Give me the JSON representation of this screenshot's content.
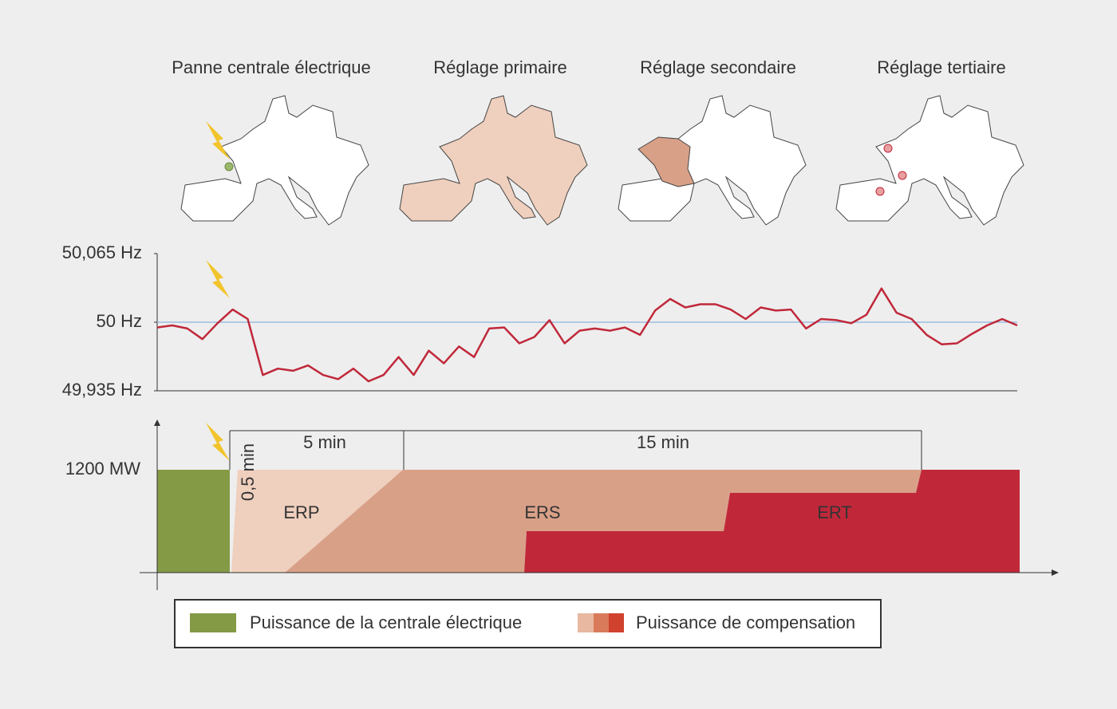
{
  "maps": [
    {
      "title": "Panne centrale électrique"
    },
    {
      "title": "Réglage primaire"
    },
    {
      "title": "Réglage secondaire"
    },
    {
      "title": "Réglage tertiaire"
    }
  ],
  "frequency": {
    "type": "line",
    "color": "#c0283a",
    "ylim": [
      49.935,
      50.065
    ],
    "yticks": [
      {
        "value": 50.065,
        "label": "50,065 Hz"
      },
      {
        "value": 50,
        "label": "50 Hz"
      },
      {
        "value": 49.935,
        "label": "49,935 Hz"
      }
    ],
    "values": [
      49.995,
      49.997,
      49.994,
      49.984,
      49.999,
      50.012,
      50.003,
      49.95,
      49.956,
      49.954,
      49.959,
      49.95,
      49.946,
      49.956,
      49.944,
      49.95,
      49.967,
      49.95,
      49.973,
      49.961,
      49.977,
      49.967,
      49.994,
      49.995,
      49.98,
      49.986,
      50.002,
      49.98,
      49.992,
      49.994,
      49.992,
      49.995,
      49.988,
      50.011,
      50.022,
      50.014,
      50.017,
      50.017,
      50.012,
      50.003,
      50.014,
      50.011,
      50.012,
      49.994,
      50.003,
      50.002,
      49.999,
      50.007,
      50.032,
      50.009,
      50.003,
      49.988,
      49.979,
      49.98,
      49.989,
      49.997,
      50.003,
      49.997
    ]
  },
  "power": {
    "level_label": "1200 MW",
    "durations": [
      "0,5 min",
      "5 min",
      "15 min"
    ],
    "regions": [
      "ERP",
      "ERS",
      "ERT"
    ]
  },
  "legend": [
    "Puissance de la centrale électrique",
    "Puissance de compensation"
  ]
}
